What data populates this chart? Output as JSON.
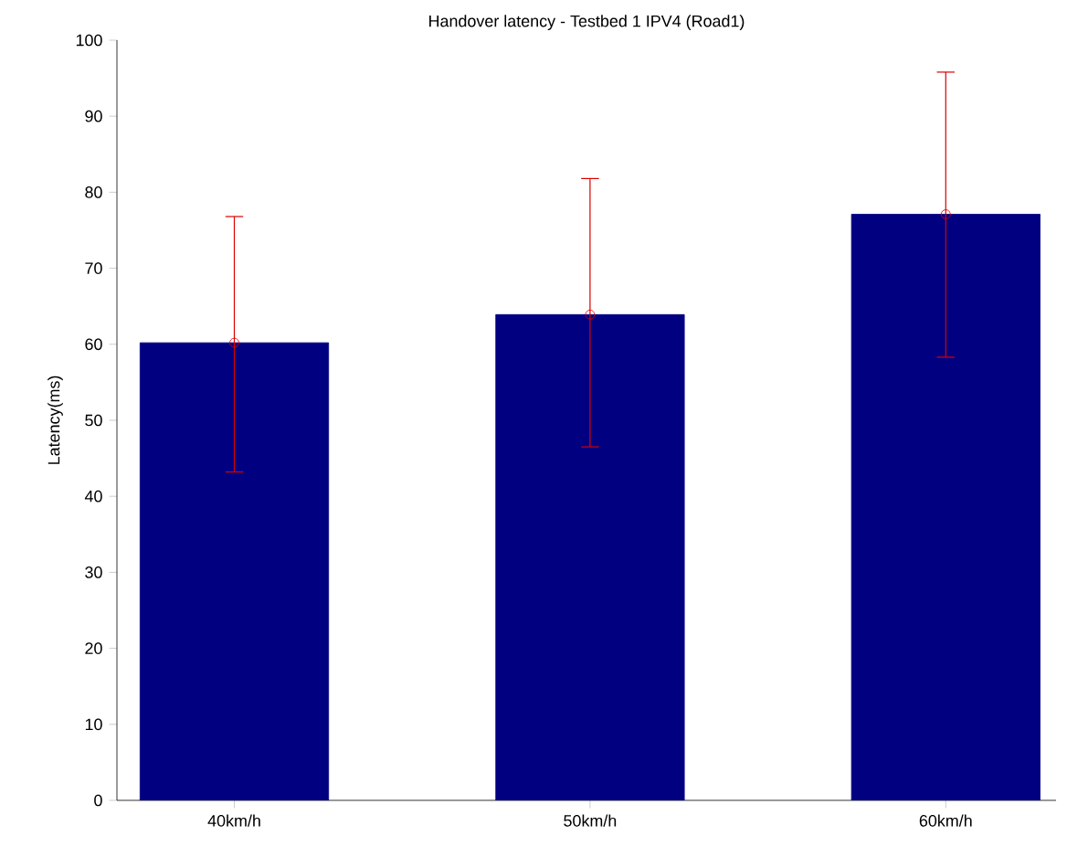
{
  "chart_data": {
    "type": "bar",
    "title": "Handover latency - Testbed 1 IPV4 (Road1)",
    "ylabel": "Latency(ms)",
    "categories": [
      "40km/h",
      "50km/h",
      "60km/h"
    ],
    "series": [
      {
        "color": "#000080",
        "values": [
          60.2,
          63.9,
          77.1
        ],
        "errors": [
          [
            43.2,
            76.8
          ],
          [
            46.5,
            81.8
          ],
          [
            58.3,
            95.8
          ]
        ]
      },
      {
        "type": "scatter",
        "color": "#d90000",
        "x": [
          "40km/h",
          "50km/h",
          "60km/h"
        ],
        "values": [
          60.2,
          63.9,
          77.1
        ]
      }
    ],
    "marker": "circle",
    "ylim": [
      0,
      100
    ],
    "yticks": [
      0,
      10,
      20,
      30,
      40,
      50,
      60,
      70,
      80,
      90,
      100
    ]
  }
}
